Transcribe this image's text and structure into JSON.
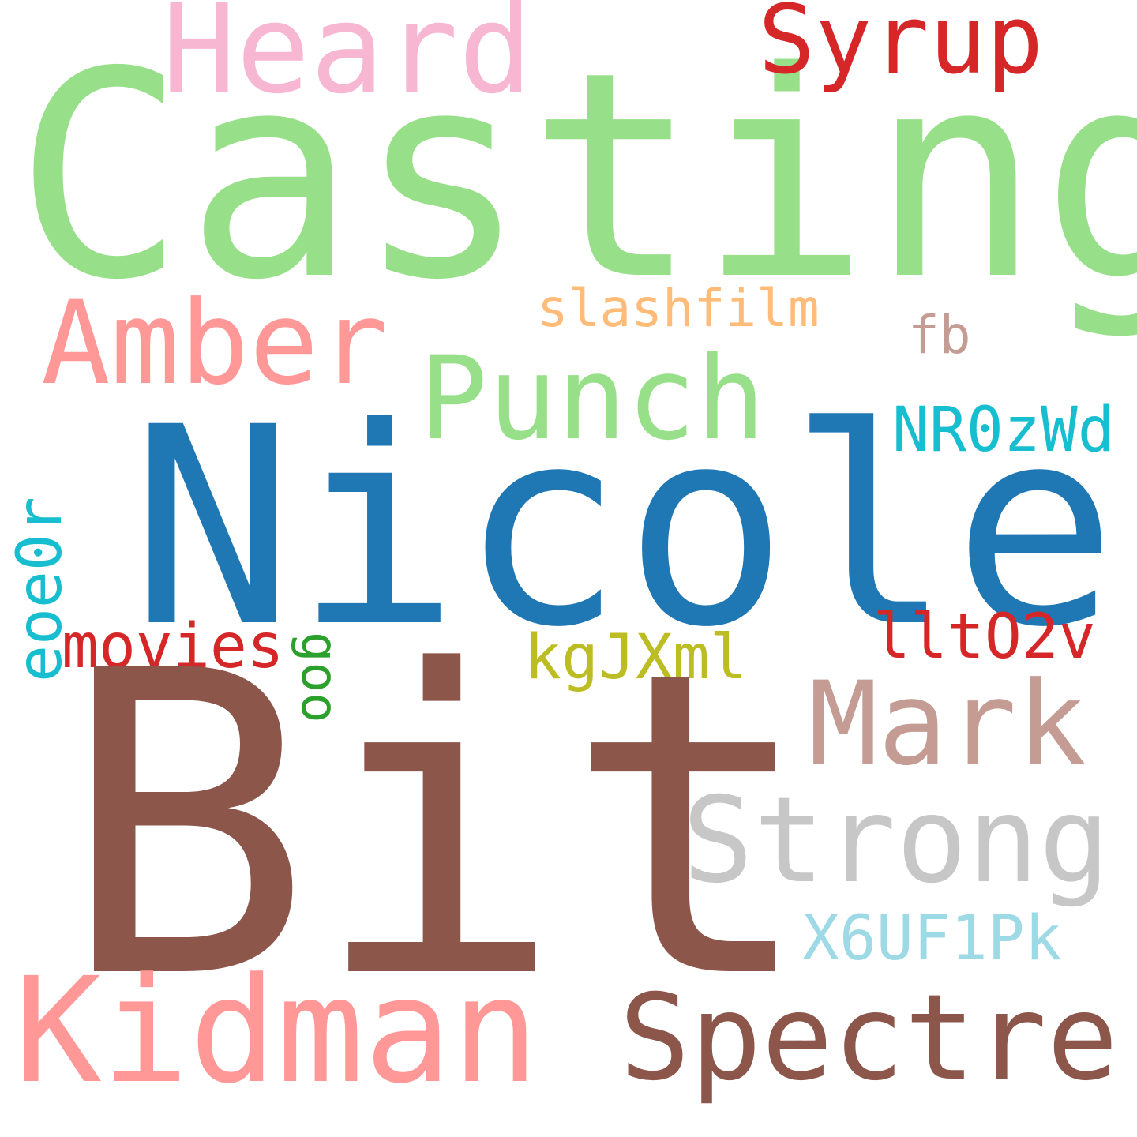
{
  "background": "#ffffff",
  "words": {
    "casting": {
      "text": "Casting",
      "color": "#98df8a"
    },
    "nicole": {
      "text": "Nicole",
      "color": "#1f77b4"
    },
    "bit": {
      "text": "Bit",
      "color": "#8c564b"
    },
    "kidman": {
      "text": "Kidman",
      "color": "#ff9896"
    },
    "spectre": {
      "text": "Spectre",
      "color": "#8c564b"
    },
    "strong": {
      "text": "Strong",
      "color": "#c7c7c7"
    },
    "mark": {
      "text": "Mark",
      "color": "#c49c94"
    },
    "punch": {
      "text": "Punch",
      "color": "#98df8a"
    },
    "amber": {
      "text": "Amber",
      "color": "#ff9896"
    },
    "heard": {
      "text": "Heard",
      "color": "#f7b6d2"
    },
    "syrup": {
      "text": "Syrup",
      "color": "#d62728"
    },
    "slashfilm": {
      "text": "slashfilm",
      "color": "#ffbb78"
    },
    "fb": {
      "text": "fb",
      "color": "#c49c94"
    },
    "nr0zwd": {
      "text": "NR0zWd",
      "color": "#17becf"
    },
    "lltO2v": {
      "text": "lltO2v",
      "color": "#d62728"
    },
    "kgjxml": {
      "text": "kgJXml",
      "color": "#bcbd22"
    },
    "movies": {
      "text": "movies",
      "color": "#d62728"
    },
    "goo": {
      "text": "goo",
      "color": "#2ca02c"
    },
    "eoe0r": {
      "text": "eoe0r",
      "color": "#17becf"
    },
    "x6uf1pk": {
      "text": "X6UF1Pk",
      "color": "#9edae5"
    }
  }
}
